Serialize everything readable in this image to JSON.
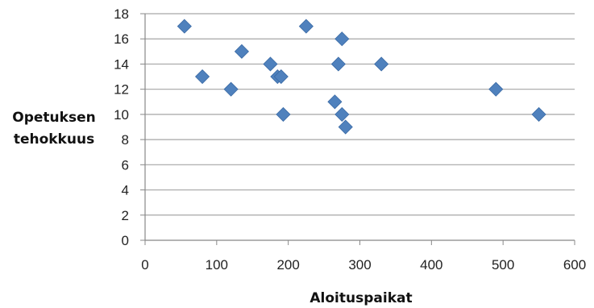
{
  "chart_data": {
    "type": "scatter",
    "title": "",
    "xlabel": "Aloituspaikat",
    "ylabel_lines": [
      "Opetuksen",
      "tehokkuus"
    ],
    "xlim": [
      0,
      600
    ],
    "ylim": [
      0,
      18
    ],
    "x_ticks": [
      0,
      100,
      200,
      300,
      400,
      500,
      600
    ],
    "y_ticks": [
      0,
      2,
      4,
      6,
      8,
      10,
      12,
      14,
      16,
      18
    ],
    "grid": "horizontal",
    "legend": "none",
    "marker": "diamond",
    "marker_color": "#4f81bd",
    "grid_color": "#a6a6a6",
    "points": [
      {
        "x": 55,
        "y": 17
      },
      {
        "x": 80,
        "y": 13
      },
      {
        "x": 120,
        "y": 12
      },
      {
        "x": 135,
        "y": 15
      },
      {
        "x": 175,
        "y": 14
      },
      {
        "x": 185,
        "y": 13
      },
      {
        "x": 190,
        "y": 13
      },
      {
        "x": 193,
        "y": 10
      },
      {
        "x": 225,
        "y": 17
      },
      {
        "x": 265,
        "y": 11
      },
      {
        "x": 270,
        "y": 14
      },
      {
        "x": 275,
        "y": 16
      },
      {
        "x": 275,
        "y": 10
      },
      {
        "x": 280,
        "y": 9
      },
      {
        "x": 330,
        "y": 14
      },
      {
        "x": 490,
        "y": 12
      },
      {
        "x": 550,
        "y": 10
      }
    ]
  }
}
